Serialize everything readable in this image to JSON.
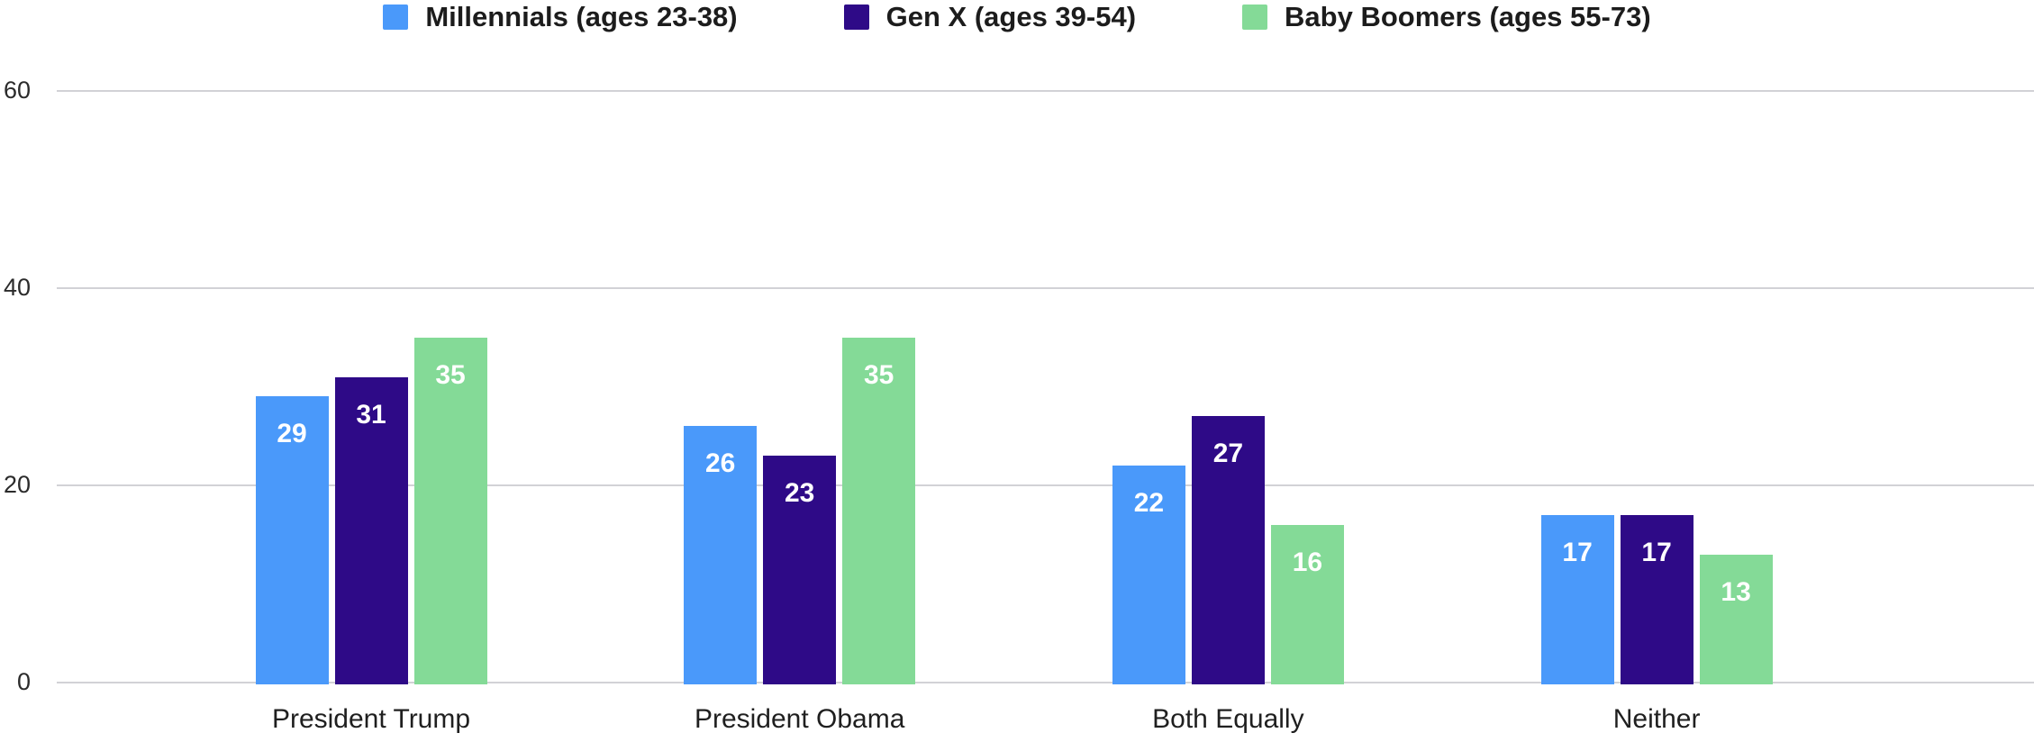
{
  "chart_data": {
    "type": "bar",
    "title": "",
    "categories": [
      "President Trump",
      "President Obama",
      "Both Equally",
      "Neither"
    ],
    "series": [
      {
        "name": "Millennials (ages 23-38)",
        "color": "#4a99fa",
        "values": [
          29,
          26,
          22,
          17
        ]
      },
      {
        "name": "Gen X (ages 39-54)",
        "color": "#2e0a87",
        "values": [
          31,
          23,
          27,
          17
        ]
      },
      {
        "name": "Baby Boomers (ages 55-73)",
        "color": "#84da97",
        "values": [
          35,
          35,
          16,
          13
        ]
      }
    ],
    "ylim": [
      0,
      60
    ],
    "yticks": [
      0,
      20,
      40,
      60
    ],
    "grid": true,
    "legend_position": "top",
    "value_labels": "inside-top",
    "value_label_color": "#ffffff"
  },
  "colors": {
    "background": "#ffffff",
    "gridline": "#d2d2d6",
    "axis_text": "#2b2b2b",
    "category_text": "#1f1f1f",
    "legend_text": "#1c1c1c"
  }
}
